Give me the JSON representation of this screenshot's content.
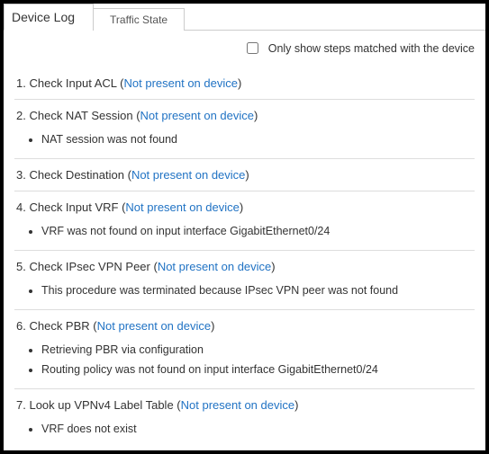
{
  "tabs": {
    "active": "Device Log",
    "inactive": "Traffic State"
  },
  "filter": {
    "label": "Only show steps matched with the device"
  },
  "link_text": "Not present on device",
  "steps": [
    {
      "num": "1.",
      "title": "Check Input ACL",
      "messages": []
    },
    {
      "num": "2.",
      "title": "Check NAT Session",
      "messages": [
        "NAT session was not found"
      ]
    },
    {
      "num": "3.",
      "title": "Check Destination",
      "messages": []
    },
    {
      "num": "4.",
      "title": "Check Input VRF",
      "messages": [
        "VRF was not found on input interface GigabitEthernet0/24"
      ]
    },
    {
      "num": "5.",
      "title": "Check IPsec VPN Peer",
      "messages": [
        "This procedure was terminated because IPsec VPN peer was not found"
      ]
    },
    {
      "num": "6.",
      "title": "Check PBR",
      "messages": [
        "Retrieving PBR via configuration",
        "Routing policy was not found on input interface GigabitEthernet0/24"
      ]
    },
    {
      "num": "7.",
      "title": "Look up VPNv4 Label Table",
      "messages": [
        "VRF does not exist"
      ]
    }
  ],
  "colors": {
    "link": "#2173c4",
    "text": "#333333",
    "border": "#dddddd",
    "outer_border": "#000000",
    "background": "#ffffff"
  }
}
